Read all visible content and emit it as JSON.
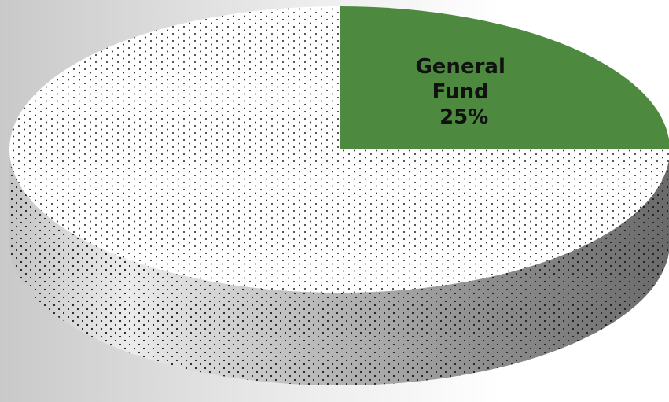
{
  "chart_data": {
    "type": "pie",
    "style": "3d",
    "slices": [
      {
        "label": "General Fund",
        "value": 25,
        "percent_label": "25%",
        "color": "#4d8a3f",
        "pattern": "solid"
      },
      {
        "label": "",
        "value": 75,
        "percent_label": "",
        "color": "#ffffff",
        "pattern": "dotted"
      }
    ],
    "legend": "none"
  }
}
